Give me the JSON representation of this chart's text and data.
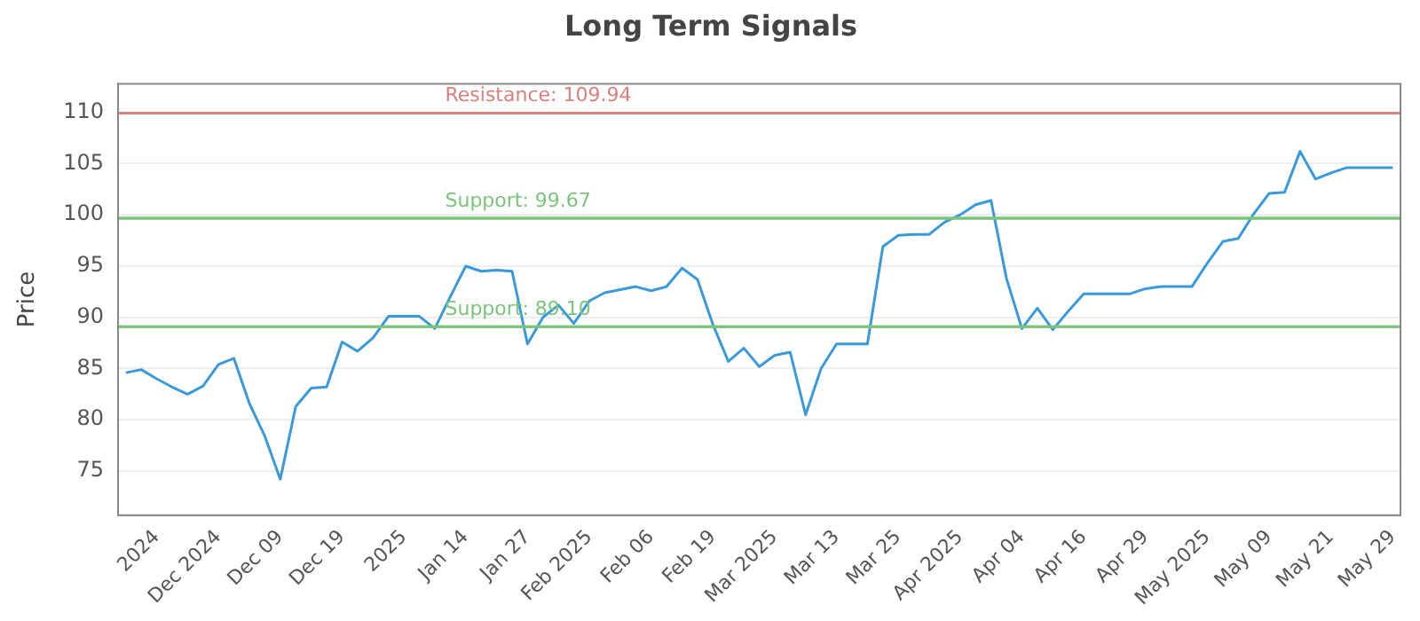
{
  "chart_data": {
    "type": "line",
    "title": "Long Term Signals",
    "ylabel": "Price",
    "categories": [
      null,
      null,
      "2024",
      null,
      null,
      null,
      "Dec 2024",
      null,
      null,
      null,
      "Dec 09",
      null,
      null,
      null,
      "Dec 19",
      null,
      null,
      null,
      "2025",
      null,
      null,
      null,
      "Jan 14",
      null,
      null,
      null,
      "Jan 27",
      null,
      null,
      null,
      "Feb 2025",
      null,
      null,
      null,
      "Feb 06",
      null,
      null,
      null,
      "Feb 19",
      null,
      null,
      null,
      "Mar 2025",
      null,
      null,
      null,
      "Mar 13",
      null,
      null,
      null,
      "Mar 25",
      null,
      null,
      null,
      "Apr 2025",
      null,
      null,
      null,
      "Apr 04",
      null,
      null,
      null,
      "Apr 16",
      null,
      null,
      null,
      "Apr 29",
      null,
      null,
      null,
      "May 2025",
      null,
      null,
      null,
      "May 09",
      null,
      null,
      null,
      "May 21",
      null,
      null,
      null,
      "May 29"
    ],
    "series": [
      {
        "color": "#3a9ad9",
        "values": [
          84.6,
          84.9,
          84.0,
          83.2,
          82.5,
          83.3,
          85.4,
          86.0,
          81.6,
          78.4,
          74.2,
          81.3,
          83.1,
          83.2,
          87.6,
          86.7,
          88.0,
          90.1,
          90.1,
          90.1,
          88.9,
          92.0,
          95.0,
          94.5,
          94.6,
          94.5,
          87.4,
          90.0,
          91.2,
          89.4,
          91.6,
          92.4,
          92.7,
          93.0,
          92.6,
          93.0,
          94.8,
          93.7,
          89.3,
          85.7,
          87.0,
          85.2,
          86.3,
          86.6,
          80.5,
          85.0,
          87.4,
          87.4,
          87.4,
          96.9,
          98.0,
          98.1,
          98.1,
          99.3,
          100.0,
          101.0,
          101.4,
          93.8,
          88.9,
          90.9,
          88.8,
          90.6,
          92.3,
          92.3,
          92.3,
          92.3,
          92.8,
          93.0,
          93.0,
          93.0,
          95.3,
          97.4,
          97.7,
          100.1,
          102.1,
          102.2,
          106.2,
          103.5,
          104.1,
          104.6,
          104.6,
          104.6,
          104.6
        ]
      }
    ],
    "ylim": [
      70.7,
      112.8
    ],
    "yticks": [
      75,
      80,
      85,
      90,
      95,
      100,
      105,
      110
    ],
    "ref_lines": [
      {
        "axis": "y",
        "value": 109.94,
        "label": "Resistance: 109.94",
        "color": "#d98080"
      },
      {
        "axis": "y",
        "value": 99.67,
        "label": "Support: 99.67",
        "color": "#7cc47c"
      },
      {
        "axis": "y",
        "value": 89.1,
        "label": "Support: 89.10",
        "color": "#7cc47c"
      }
    ],
    "grid": "y",
    "legend": false,
    "marker": "none",
    "line_style": "solid"
  }
}
